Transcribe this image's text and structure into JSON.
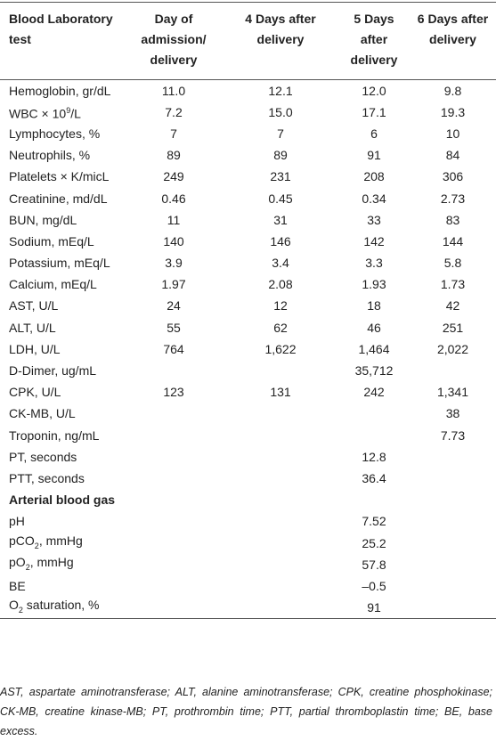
{
  "table": {
    "header": [
      "Blood Laboratory test",
      "Day of admission/ delivery",
      "4 Days after delivery",
      "5 Days after delivery",
      "6 Days after delivery"
    ],
    "rows": [
      {
        "label": "Hemoglobin, gr/dL",
        "cells": [
          "11.0",
          "12.1",
          "12.0",
          "9.8"
        ]
      },
      {
        "label_parts": [
          "WBC × 10",
          "9",
          "/L"
        ],
        "label_format": "sup",
        "cells": [
          "7.2",
          "15.0",
          "17.1",
          "19.3"
        ]
      },
      {
        "label": "Lymphocytes, %",
        "cells": [
          "7",
          "7",
          "6",
          "10"
        ]
      },
      {
        "label": "Neutrophils, %",
        "cells": [
          "89",
          "89",
          "91",
          "84"
        ]
      },
      {
        "label": "Platelets × K/micL",
        "cells": [
          "249",
          "231",
          "208",
          "306"
        ]
      },
      {
        "label": "Creatinine, md/dL",
        "cells": [
          "0.46",
          "0.45",
          "0.34",
          "2.73"
        ]
      },
      {
        "label": "BUN, mg/dL",
        "cells": [
          "11",
          "31",
          "33",
          "83"
        ]
      },
      {
        "label": "Sodium, mEq/L",
        "cells": [
          "140",
          "146",
          "142",
          "144"
        ]
      },
      {
        "label": "Potassium, mEq/L",
        "cells": [
          "3.9",
          "3.4",
          "3.3",
          "5.8"
        ]
      },
      {
        "label": "Calcium, mEq/L",
        "cells": [
          "1.97",
          "2.08",
          "1.93",
          "1.73"
        ]
      },
      {
        "label": "AST, U/L",
        "cells": [
          "24",
          "12",
          "18",
          "42"
        ]
      },
      {
        "label": "ALT, U/L",
        "cells": [
          "55",
          "62",
          "46",
          "251"
        ]
      },
      {
        "label": "LDH, U/L",
        "cells": [
          "764",
          "1,622",
          "1,464",
          "2,022"
        ]
      },
      {
        "label": "D-Dimer, ug/mL",
        "cells": [
          null,
          null,
          "35,712",
          null
        ]
      },
      {
        "label": "CPK, U/L",
        "cells": [
          "123",
          "131",
          "242",
          "1,341"
        ]
      },
      {
        "label": "CK-MB, U/L",
        "cells": [
          null,
          null,
          null,
          "38"
        ]
      },
      {
        "label": "Troponin, ng/mL",
        "cells": [
          null,
          null,
          null,
          "7.73"
        ]
      },
      {
        "label": "PT, seconds",
        "cells": [
          null,
          null,
          "12.8",
          null
        ]
      },
      {
        "label": "PTT, seconds",
        "cells": [
          null,
          null,
          "36.4",
          null
        ]
      },
      {
        "section": "Arterial blood gas"
      },
      {
        "label": "pH",
        "cells": [
          null,
          null,
          "7.52",
          null
        ]
      },
      {
        "label_parts": [
          "pCO",
          "2",
          ", mmHg"
        ],
        "label_format": "sub",
        "cells": [
          null,
          null,
          "25.2",
          null
        ]
      },
      {
        "label_parts": [
          "pO",
          "2",
          ", mmHg"
        ],
        "label_format": "sub",
        "cells": [
          null,
          null,
          "57.8",
          null
        ]
      },
      {
        "label": "BE",
        "cells": [
          null,
          null,
          "–0.5",
          null
        ]
      },
      {
        "label_parts": [
          "O",
          "2",
          " saturation, %"
        ],
        "label_format": "sub",
        "cells": [
          null,
          null,
          "91",
          null
        ]
      }
    ],
    "footnote": "AST, aspartate aminotransferase; ALT, alanine aminotransferase; CPK, creatine phosphokinase; CK-MB, creatine kinase-MB; PT, prothrombin time; PTT, partial thromboplastin time; BE, base excess."
  }
}
